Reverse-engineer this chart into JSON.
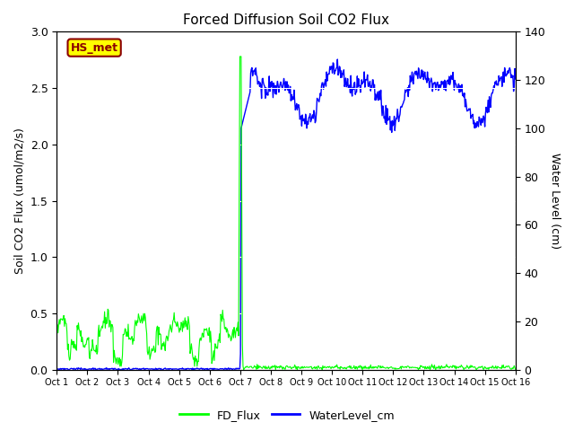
{
  "title": "Forced Diffusion Soil CO2 Flux",
  "ylabel_left": "Soil CO2 Flux (umol/m2/s)",
  "ylabel_right": "Water Level (cm)",
  "ylim_left": [
    0.0,
    3.0
  ],
  "ylim_right": [
    0,
    140
  ],
  "yticks_left": [
    0.0,
    0.5,
    1.0,
    1.5,
    2.0,
    2.5,
    3.0
  ],
  "yticks_right": [
    0,
    20,
    40,
    60,
    80,
    100,
    120,
    140
  ],
  "xtick_labels": [
    "Oct 1",
    "Oct 2",
    "Oct 3",
    "Oct 4",
    "Oct 5",
    "Oct 6",
    "Oct 7",
    "Oct 8",
    "Oct 9",
    "Oct 10",
    "Oct 11",
    "Oct 12",
    "Oct 13",
    "Oct 14",
    "Oct 15",
    "Oct 16"
  ],
  "fd_color": "#00ff00",
  "wl_color": "#0000ff",
  "bg_color": "#d3d3d3",
  "annotation_text": "HS_met",
  "annotation_bg": "#ffff00",
  "annotation_border": "#8b0000",
  "legend_labels": [
    "FD_Flux",
    "WaterLevel_cm"
  ],
  "figsize": [
    6.4,
    4.8
  ],
  "dpi": 100
}
